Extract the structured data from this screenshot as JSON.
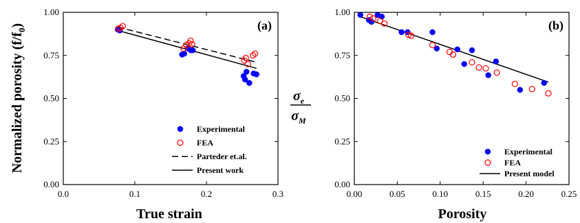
{
  "chart_data": [
    {
      "type": "scatter",
      "panel_label": "(a)",
      "xlabel": "True strain",
      "ylabel": "Normalized porosity (f/f",
      "ylabel_sub": "0",
      "ylabel_end": ")",
      "xlim": [
        0.0,
        0.3
      ],
      "ylim": [
        0.0,
        1.0
      ],
      "xticks": [
        "0.0",
        "0.1",
        "0.2",
        "0.3"
      ],
      "yticks": [
        "0.00",
        "0.25",
        "0.50",
        "0.75",
        "1.00"
      ],
      "legend_position": "bottom-right",
      "series": [
        {
          "name": "Experimental",
          "marker": "filled-circle",
          "color": "#0000ff",
          "x": [
            0.076,
            0.079,
            0.166,
            0.169,
            0.174,
            0.178,
            0.181,
            0.252,
            0.254,
            0.256,
            0.26,
            0.266,
            0.27
          ],
          "y": [
            0.9,
            0.895,
            0.755,
            0.76,
            0.79,
            0.78,
            0.78,
            0.63,
            0.61,
            0.655,
            0.59,
            0.645,
            0.64
          ]
        },
        {
          "name": "FEA",
          "marker": "open-circle",
          "color": "#ff0000",
          "x": [
            0.077,
            0.08,
            0.083,
            0.168,
            0.172,
            0.176,
            0.178,
            0.18,
            0.253,
            0.255,
            0.258,
            0.265,
            0.268
          ],
          "y": [
            0.905,
            0.91,
            0.92,
            0.79,
            0.81,
            0.82,
            0.835,
            0.815,
            0.72,
            0.735,
            0.7,
            0.75,
            0.76
          ]
        },
        {
          "name": "Parteder et.al.",
          "line": "dashed",
          "color": "#000000",
          "x": [
            0.076,
            0.27
          ],
          "y": [
            0.915,
            0.71
          ]
        },
        {
          "name": "Present work",
          "line": "solid",
          "color": "#000000",
          "x": [
            0.076,
            0.27
          ],
          "y": [
            0.895,
            0.675
          ]
        }
      ]
    },
    {
      "type": "scatter",
      "panel_label": "(b)",
      "xlabel": "Porosity",
      "ylabel_num": "σ",
      "ylabel_num_sub": "e",
      "ylabel_den": "σ",
      "ylabel_den_sub": "M",
      "xlim": [
        0.0,
        0.25
      ],
      "ylim": [
        0.0,
        1.0
      ],
      "xticks": [
        "0.00",
        "0.05",
        "0.10",
        "0.15",
        "0.20",
        "0.25"
      ],
      "yticks": [
        "0.00",
        "0.25",
        "0.50",
        "0.75",
        "1.00"
      ],
      "legend_position": "bottom-right",
      "series": [
        {
          "name": "Experimental",
          "marker": "filled-circle",
          "color": "#0000ff",
          "x": [
            0.007,
            0.017,
            0.02,
            0.027,
            0.032,
            0.055,
            0.062,
            0.091,
            0.096,
            0.12,
            0.128,
            0.137,
            0.156,
            0.165,
            0.193,
            0.221
          ],
          "y": [
            0.985,
            0.955,
            0.945,
            0.985,
            0.975,
            0.885,
            0.885,
            0.885,
            0.79,
            0.785,
            0.7,
            0.78,
            0.635,
            0.715,
            0.55,
            0.59
          ]
        },
        {
          "name": "FEA",
          "marker": "open-circle",
          "color": "#ff0000",
          "x": [
            0.018,
            0.022,
            0.03,
            0.035,
            0.063,
            0.066,
            0.091,
            0.111,
            0.115,
            0.137,
            0.145,
            0.153,
            0.166,
            0.187,
            0.207,
            0.226
          ],
          "y": [
            0.975,
            0.965,
            0.95,
            0.935,
            0.87,
            0.865,
            0.81,
            0.77,
            0.755,
            0.71,
            0.68,
            0.675,
            0.65,
            0.585,
            0.555,
            0.53
          ]
        },
        {
          "name": "Present model",
          "line": "solid",
          "color": "#000000",
          "x": [
            0.007,
            0.226
          ],
          "y": [
            0.975,
            0.595
          ]
        }
      ]
    }
  ]
}
